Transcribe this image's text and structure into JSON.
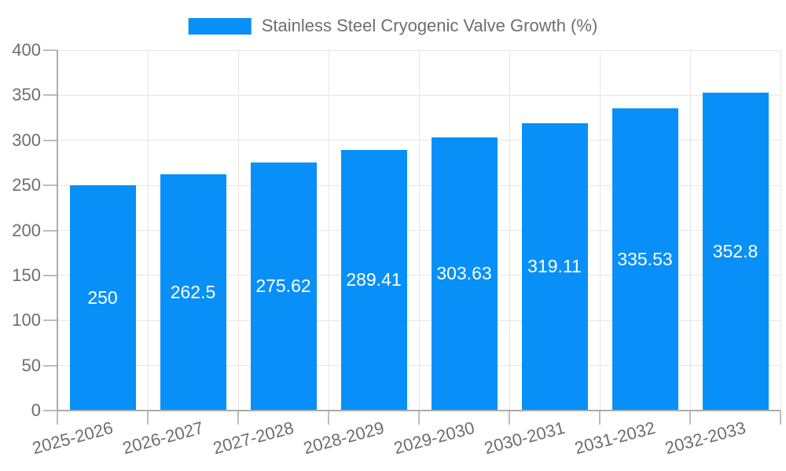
{
  "legend": {
    "label": "Stainless Steel Cryogenic Valve Growth (%)"
  },
  "chart_data": {
    "type": "bar",
    "title": "",
    "categories": [
      "2025-2026",
      "2026-2027",
      "2027-2028",
      "2028-2029",
      "2029-2030",
      "2030-2031",
      "2031-2032",
      "2032-2033"
    ],
    "series": [
      {
        "name": "Stainless Steel Cryogenic Valve Growth (%)",
        "values": [
          250,
          262.5,
          275.62,
          289.41,
          303.63,
          319.11,
          335.53,
          352.8
        ]
      }
    ],
    "value_labels": [
      "250",
      "262.5",
      "275.62",
      "289.41",
      "303.63",
      "319.11",
      "335.53",
      "352.8"
    ],
    "xlabel": "",
    "ylabel": "",
    "ylim": [
      0,
      400
    ],
    "y_ticks": [
      0,
      50,
      100,
      150,
      200,
      250,
      300,
      350,
      400
    ],
    "grid": true,
    "legend_position": "top-center",
    "x_label_rotation_deg": -15,
    "colors": {
      "bar": "#0890f8",
      "axis_line": "#ababab",
      "tick": "#bdbdbd",
      "grid": "#e6e6e6",
      "axis_text": "#6e6e6e",
      "bar_label_text": "#ffffff",
      "background": "#ffffff"
    }
  }
}
